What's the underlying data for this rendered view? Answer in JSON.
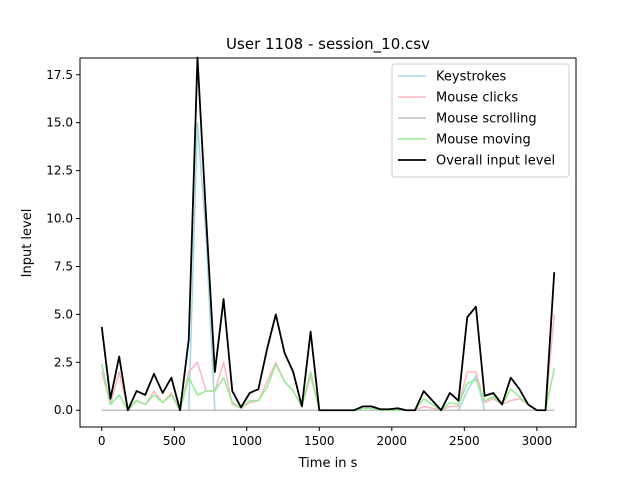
{
  "chart_data": {
    "type": "line",
    "title": "User 1108 - session_10.csv",
    "xlabel": "Time in s",
    "ylabel": "Input level",
    "xlim": [
      -150,
      3270
    ],
    "ylim": [
      -0.875,
      18.375
    ],
    "xticks": [
      0,
      500,
      1000,
      1500,
      2000,
      2500,
      3000
    ],
    "xtick_labels": [
      "0",
      "500",
      "1000",
      "1500",
      "2000",
      "2500",
      "3000"
    ],
    "yticks": [
      0.0,
      2.5,
      5.0,
      7.5,
      10.0,
      12.5,
      15.0,
      17.5
    ],
    "ytick_labels": [
      "0.0",
      "2.5",
      "5.0",
      "7.5",
      "10.0",
      "12.5",
      "15.0",
      "17.5"
    ],
    "grid": false,
    "legend_position": "top-right",
    "x": [
      0,
      60,
      120,
      180,
      240,
      300,
      360,
      420,
      480,
      540,
      600,
      660,
      720,
      780,
      840,
      900,
      960,
      1020,
      1080,
      1140,
      1200,
      1260,
      1320,
      1380,
      1440,
      1500,
      1560,
      1620,
      1680,
      1740,
      1800,
      1860,
      1920,
      1980,
      2040,
      2100,
      2160,
      2220,
      2280,
      2340,
      2400,
      2460,
      2520,
      2580,
      2640,
      2700,
      2760,
      2820,
      2880,
      2940,
      3000,
      3060,
      3120
    ],
    "series": [
      {
        "name": "Keystrokes",
        "color": "#9fd9e0",
        "values": [
          0,
          0,
          0,
          0,
          0,
          0,
          0,
          0,
          0,
          0,
          0,
          15.0,
          9.0,
          0,
          0,
          0,
          0,
          0,
          0,
          0,
          0,
          0,
          0,
          0,
          0,
          0,
          0,
          0,
          0,
          0,
          0,
          0,
          0,
          0,
          0,
          0,
          0,
          0,
          0,
          0,
          0,
          0,
          1.0,
          1.8,
          0,
          0,
          0,
          0,
          0,
          0,
          0,
          0,
          0
        ]
      },
      {
        "name": "Mouse clicks",
        "color": "#ffb6c1",
        "values": [
          2.0,
          0.3,
          2.0,
          0,
          0.5,
          0.3,
          1.0,
          0.4,
          0.9,
          0,
          2.0,
          2.5,
          1.0,
          1.0,
          2.5,
          0.3,
          0.1,
          0.4,
          0.5,
          1.5,
          2.5,
          1.5,
          1.0,
          0.2,
          1.8,
          0,
          0,
          0,
          0,
          0,
          0,
          0,
          0,
          0,
          0,
          0,
          0,
          0.2,
          0.1,
          0,
          0.2,
          0.2,
          2.0,
          2.0,
          0.4,
          0.6,
          0.3,
          0.5,
          0.6,
          0.3,
          0,
          0,
          5.0
        ]
      },
      {
        "name": "Mouse scrolling",
        "color": "#c0c0c0",
        "values": [
          0,
          0,
          0,
          0,
          0,
          0,
          0,
          0,
          0,
          0,
          0,
          0,
          0,
          0,
          0,
          0,
          0,
          0,
          0,
          0,
          0,
          0,
          0,
          0,
          0,
          0,
          0,
          0,
          0,
          0,
          0,
          0,
          0,
          0,
          0,
          0,
          0,
          0,
          0,
          0,
          0,
          0,
          0,
          0,
          0,
          0,
          0,
          0,
          0,
          0,
          0,
          0,
          0
        ]
      },
      {
        "name": "Mouse moving",
        "color": "#90ee90",
        "values": [
          2.4,
          0.3,
          0.8,
          0,
          0.5,
          0.3,
          0.8,
          0.4,
          0.8,
          0,
          1.7,
          0.8,
          1.0,
          1.0,
          1.7,
          0.4,
          0.1,
          0.5,
          0.5,
          1.2,
          2.4,
          1.5,
          1.0,
          0.2,
          2.0,
          0,
          0,
          0,
          0,
          0,
          0.1,
          0.1,
          0,
          0,
          0,
          0,
          0,
          0.6,
          0.3,
          0,
          0.4,
          0.3,
          1.4,
          1.6,
          0.5,
          0.7,
          0.3,
          1.1,
          0.7,
          0.3,
          0,
          0,
          2.2
        ]
      },
      {
        "name": "Overall input level",
        "color": "#000000",
        "values": [
          4.35,
          0.6,
          2.8,
          0,
          1.0,
          0.8,
          1.9,
          0.9,
          1.7,
          0,
          3.7,
          18.4,
          10.0,
          2.0,
          5.8,
          1.0,
          0.15,
          0.9,
          1.1,
          3.2,
          5.0,
          3.0,
          2.0,
          0.2,
          4.1,
          0,
          0,
          0,
          0,
          0,
          0.2,
          0.2,
          0.05,
          0.05,
          0.1,
          0,
          0,
          1.0,
          0.5,
          0,
          0.9,
          0.5,
          4.85,
          5.4,
          0.75,
          0.9,
          0.3,
          1.7,
          1.1,
          0.3,
          0,
          0,
          7.2
        ]
      }
    ]
  }
}
